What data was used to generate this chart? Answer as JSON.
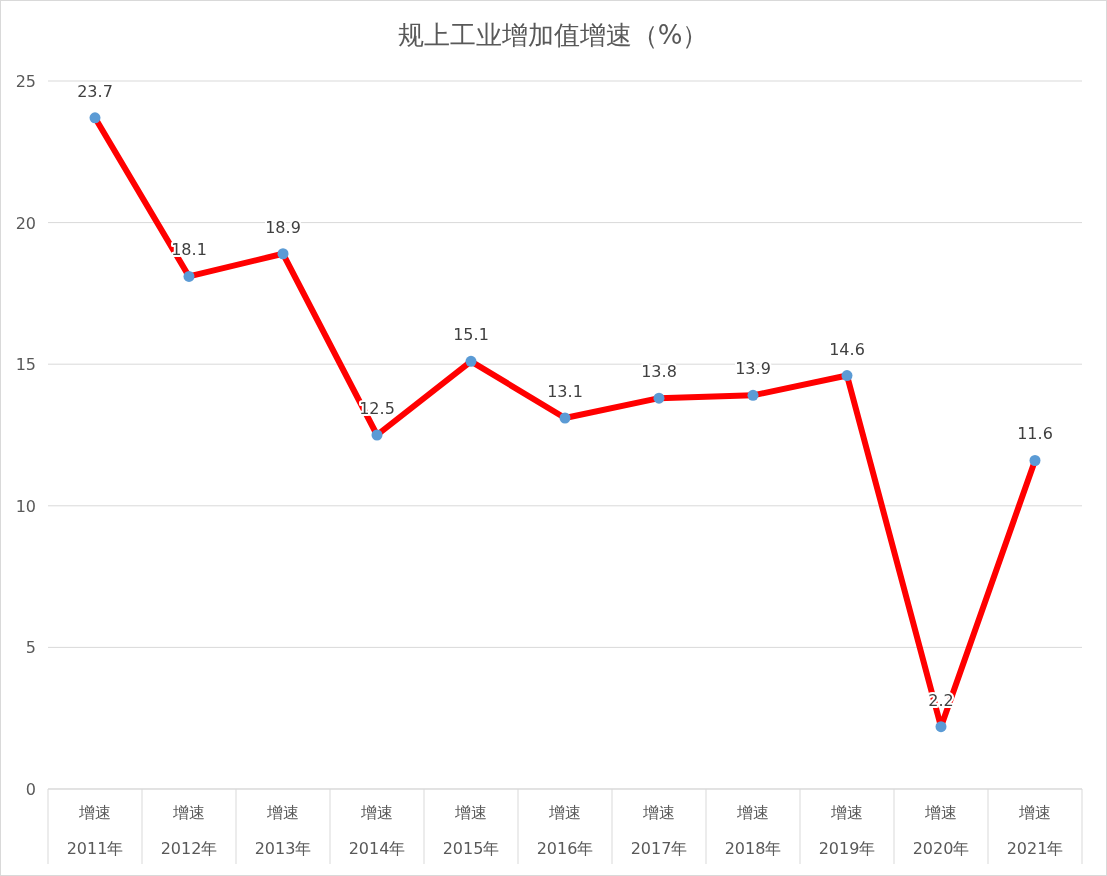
{
  "chart_data": {
    "type": "line",
    "title": "规上工业增加值增速（%）",
    "categories": [
      "增速 2011年",
      "增速 2012年",
      "增速 2013年",
      "增速 2014年",
      "增速 2015年",
      "增速 2016年",
      "增速 2017年",
      "增速 2018年",
      "增速 2019年",
      "增速 2020年",
      "增速 2021年"
    ],
    "series": [
      {
        "color": "#ff0000",
        "values": [
          23.7,
          18.1,
          18.9,
          12.5,
          15.1,
          13.1,
          13.8,
          13.9,
          14.6,
          2.2,
          11.6
        ]
      }
    ],
    "ylim": [
      0,
      25
    ],
    "yticks": [
      0,
      5,
      10,
      15,
      20,
      25
    ],
    "grid": "y",
    "marker": "circle",
    "line_style": "solid",
    "data_labels": true
  }
}
